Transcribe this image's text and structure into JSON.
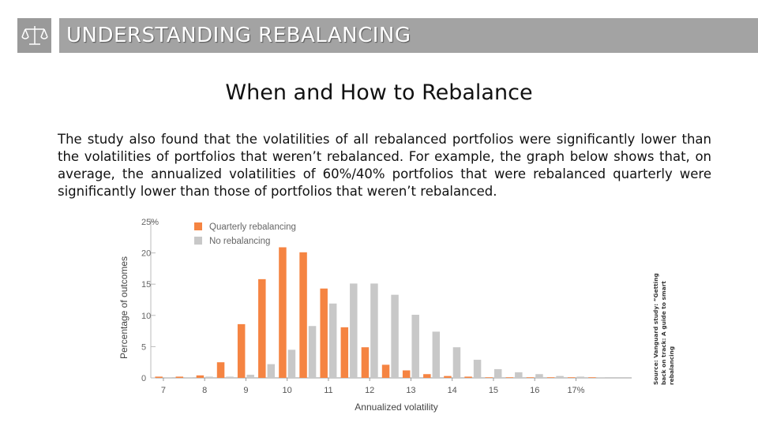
{
  "header": {
    "title": "UNDERSTANDING REBALANCING",
    "logo_icon": "balance-scale-icon"
  },
  "subtitle": "When and How to Rebalance",
  "body_text": "The study also found that the volatilities of all rebalanced portfolios were significantly lower than the volatilities of portfolios that weren’t rebalanced. For example, the graph below shows that, on average, the annualized volatilities of 60%/40% portfolios that were rebalanced quarterly were significantly lower than those of portfolios that weren’t rebalanced.",
  "source_text": "Source: Vanguard study: “Getting back on track: A guide to smart rebalancing",
  "chart_data": {
    "type": "bar",
    "xlabel": "Annualized volatility",
    "ylabel": "Percentage of outcomes",
    "ylim": [
      0,
      25
    ],
    "yticks": [
      "0",
      "5",
      "10",
      "15",
      "20",
      "25%"
    ],
    "xticks": [
      "7",
      "8",
      "9",
      "10",
      "11",
      "12",
      "13",
      "14",
      "15",
      "16",
      "17%"
    ],
    "x": [
      7,
      7.5,
      8,
      8.5,
      9,
      9.5,
      10,
      10.5,
      11,
      11.5,
      12,
      12.5,
      13,
      13.5,
      14,
      14.5,
      15,
      15.5,
      16,
      16.5,
      17,
      17.5
    ],
    "series": [
      {
        "name": "Quarterly rebalancing",
        "color": "#f58442",
        "values": [
          0.2,
          0.2,
          0.4,
          2.5,
          8.6,
          15.8,
          20.9,
          20.1,
          14.3,
          8.1,
          4.9,
          2.1,
          1.2,
          0.6,
          0.3,
          0.2,
          0.1,
          0.1,
          0.1,
          0.1,
          0.1,
          0.1
        ]
      },
      {
        "name": "No rebalancing",
        "color": "#c8c8c8",
        "values": [
          0.1,
          0.1,
          0.2,
          0.2,
          0.5,
          2.2,
          4.5,
          8.3,
          11.9,
          15.1,
          15.1,
          13.3,
          10.1,
          7.4,
          4.9,
          2.9,
          1.4,
          0.9,
          0.6,
          0.3,
          0.2,
          0.1
        ]
      }
    ],
    "legend_position": "top-left",
    "grid": false
  }
}
